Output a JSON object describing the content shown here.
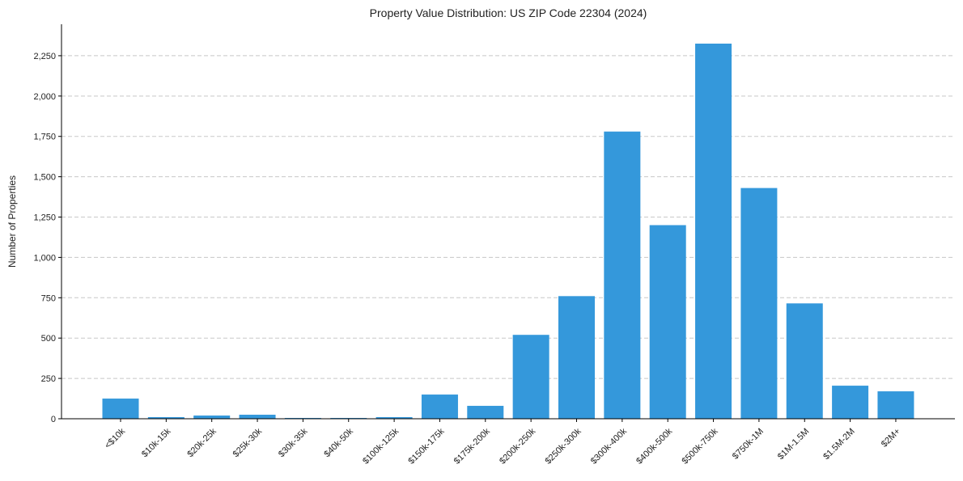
{
  "chart_data": {
    "type": "bar",
    "title": "Property Value Distribution: US ZIP Code 22304 (2024)",
    "xlabel": "",
    "ylabel": "Number of Properties",
    "categories": [
      "<$10k",
      "$10k-15k",
      "$20k-25k",
      "$25k-30k",
      "$30k-35k",
      "$40k-50k",
      "$100k-125k",
      "$150k-175k",
      "$175k-200k",
      "$200k-250k",
      "$250k-300k",
      "$300k-400k",
      "$400k-500k",
      "$500k-750k",
      "$750k-1M",
      "$1M-1.5M",
      "$1.5M-2M",
      "$2M+"
    ],
    "values": [
      125,
      10,
      20,
      25,
      5,
      5,
      10,
      150,
      80,
      520,
      760,
      1780,
      1200,
      2325,
      1430,
      715,
      205,
      170
    ],
    "ylim": [
      0,
      2445
    ],
    "yticks": [
      0,
      250,
      500,
      750,
      1000,
      1250,
      1500,
      1750,
      2000,
      2250
    ],
    "ytick_labels": [
      "0",
      "250",
      "500",
      "750",
      "1,000",
      "1,250",
      "1,500",
      "1,750",
      "2,000",
      "2,250"
    ],
    "grid": "y dashed",
    "bar_color": "#3498db"
  }
}
